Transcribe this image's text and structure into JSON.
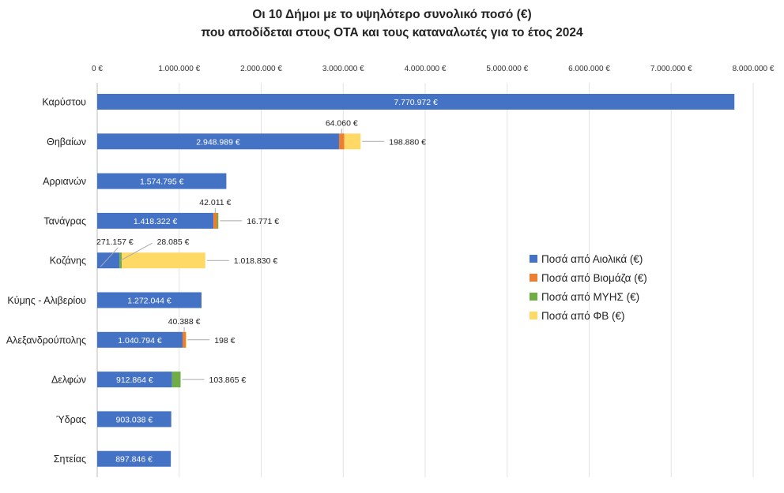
{
  "chart_data": {
    "type": "bar",
    "orientation": "horizontal",
    "stacked": true,
    "title": [
      "Οι 10 Δήμοι με το υψηλότερο συνολικό ποσό (€)",
      "που αποδίδεται στους ΟΤΑ και τους καταναλωτές για το έτος 2024"
    ],
    "xlim": [
      0,
      8000000
    ],
    "x_ticks": [
      0,
      1000000,
      2000000,
      3000000,
      4000000,
      5000000,
      6000000,
      7000000,
      8000000
    ],
    "x_tick_labels": [
      "0 €",
      "1.000.000 €",
      "2.000.000 €",
      "3.000.000 €",
      "4.000.000 €",
      "5.000.000 €",
      "6.000.000 €",
      "7.000.000 €",
      "8.000.000 €"
    ],
    "grid": true,
    "legend_position": "right",
    "categories": [
      "Καρύστου",
      "Θηβαίων",
      "Αρριανών",
      "Τανάγρας",
      "Κοζάνης",
      "Κύμης - Αλιβερίου",
      "Αλεξανδρούπολης",
      "Δελφών",
      "Ύδρας",
      "Σητείας"
    ],
    "series": [
      {
        "name": "Ποσά από Αιολικά (€)",
        "color": "#4472C4",
        "values": [
          7770972,
          2948989,
          1574795,
          1418322,
          271157,
          1272044,
          1040794,
          912864,
          903038,
          897846
        ],
        "labels": [
          "7.770.972 €",
          "2.948.989 €",
          "1.574.795 €",
          "1.418.322 €",
          "271.157 €",
          "1.272.044 €",
          "1.040.794 €",
          "912.864 €",
          "903.038 €",
          "897.846 €"
        ]
      },
      {
        "name": "Ποσά από Βιομάζα (€)",
        "color": "#ED7D31",
        "values": [
          0,
          64060,
          0,
          42011,
          0,
          0,
          40388,
          0,
          0,
          0
        ],
        "labels": [
          "",
          "64.060 €",
          "",
          "42.011 €",
          "",
          "",
          "40.388 €",
          "",
          "",
          ""
        ]
      },
      {
        "name": "Ποσά από ΜΥΗΣ (€)",
        "color": "#70AD47",
        "values": [
          0,
          0,
          0,
          16771,
          28085,
          0,
          0,
          103865,
          0,
          0
        ],
        "labels": [
          "",
          "",
          "",
          "16.771 €",
          "28.085 €",
          "",
          "",
          "103.865 €",
          "",
          ""
        ]
      },
      {
        "name": "Ποσά από ΦΒ (€)",
        "color": "#FFD966",
        "values": [
          0,
          198880,
          0,
          0,
          1018830,
          0,
          198,
          0,
          0,
          0
        ],
        "labels": [
          "",
          "198.880 €",
          "",
          "",
          "1.018.830 €",
          "",
          "198 €",
          "",
          "",
          ""
        ]
      }
    ]
  }
}
